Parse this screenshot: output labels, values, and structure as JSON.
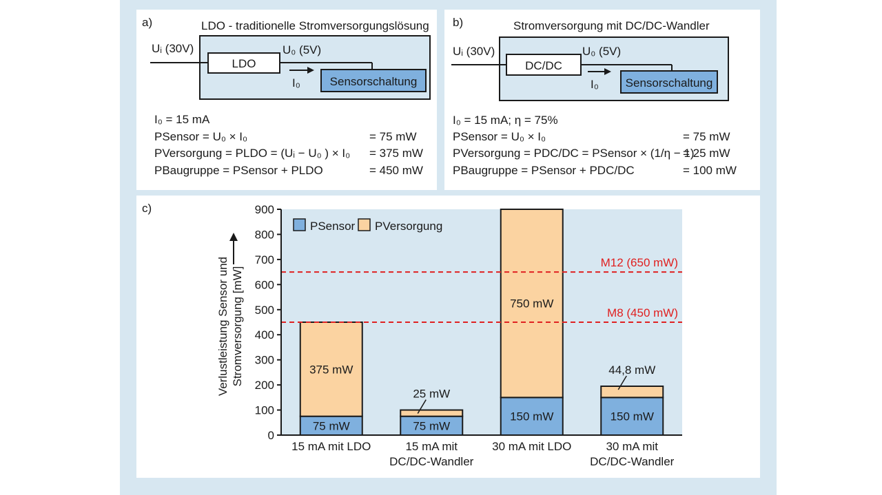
{
  "panel_a": {
    "label": "a)",
    "title": "LDO - traditionelle Stromversorgungslösung",
    "input_label": "Uᵢ (30V)",
    "output_label": "U₀ (5V)",
    "current_label": "I₀",
    "regulator_label": "LDO",
    "sensor_label": "Sensorschaltung",
    "equations": [
      {
        "text": "I₀ = 15 mA",
        "value": ""
      },
      {
        "text": "PSensor = U₀ × I₀",
        "value": "= 75 mW"
      },
      {
        "text": "PVersorgung = PLDO = (Uᵢ − U₀ ) × I₀",
        "value": "= 375 mW"
      },
      {
        "text": "PBaugruppe = PSensor + PLDO",
        "value": "= 450 mW"
      }
    ]
  },
  "panel_b": {
    "label": "b)",
    "title": "Stromversorgung mit DC/DC-Wandler",
    "input_label": "Uᵢ (30V)",
    "output_label": "U₀ (5V)",
    "current_label": "I₀",
    "regulator_label": "DC/DC",
    "sensor_label": "Sensorschaltung",
    "equations": [
      {
        "text": "I₀ = 15 mA; η = 75%",
        "value": ""
      },
      {
        "text": "PSensor = U₀ × I₀",
        "value": "= 75 mW"
      },
      {
        "text": "PVersorgung = PDC/DC = PSensor × (1/η − 1)",
        "value": "= 25 mW"
      },
      {
        "text": "PBaugruppe = PSensor + PDC/DC",
        "value": "= 100 mW"
      }
    ]
  },
  "panel_c": {
    "label": "c)",
    "legend": {
      "sensor": "PSensor",
      "versorgung": "PVersorgung"
    },
    "colors": {
      "sensor": "#7fb0de",
      "versorgung": "#fbd3a1",
      "bg": "#d7e7f1",
      "limit": "#e02020"
    }
  },
  "chart_data": {
    "type": "bar",
    "stacked": true,
    "ylabel_line1": "Verlustleistung Sensor und",
    "ylabel_line2": "Stromversorgung [mW]",
    "ylim": [
      0,
      900
    ],
    "yticks": [
      0,
      100,
      200,
      300,
      400,
      500,
      600,
      700,
      800,
      900
    ],
    "categories": [
      [
        "15 mA mit LDO"
      ],
      [
        "15 mA mit",
        "DC/DC-Wandler"
      ],
      [
        "30 mA mit LDO"
      ],
      [
        "30 mA mit",
        "DC/DC-Wandler"
      ]
    ],
    "series": [
      {
        "name": "PSensor",
        "values": [
          75,
          75,
          150,
          150
        ],
        "labels": [
          "75 mW",
          "75 mW",
          "150 mW",
          "150 mW"
        ]
      },
      {
        "name": "PVersorgung",
        "values": [
          375,
          25,
          750,
          44.8
        ],
        "labels": [
          "375 mW",
          "25 mW",
          "750 mW",
          "44,8 mW"
        ]
      }
    ],
    "reference_lines": [
      {
        "value": 650,
        "label": "M12 (650 mW)"
      },
      {
        "value": 450,
        "label": "M8 (450 mW)"
      }
    ]
  }
}
